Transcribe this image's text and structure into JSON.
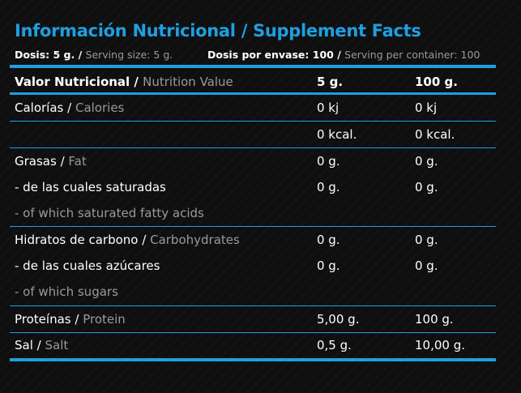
{
  "title": "Información Nutricional / Supplement Facts",
  "dosis": {
    "serving_es": "Dosis: 5 g. /",
    "serving_en": "Serving size: 5 g.",
    "container_es": "Dosis por envase: 100 /",
    "container_en": "Serving per container: 100"
  },
  "header": {
    "label_es": "Valor Nutricional /",
    "label_en": "Nutrition Value",
    "col1": "5 g.",
    "col2": "100 g."
  },
  "rows": [
    {
      "es": "Calorías /",
      "en": "Calories",
      "v1": "0 kj",
      "v2": "0 kj"
    },
    {
      "es": "",
      "en": "",
      "v1": "0 kcal.",
      "v2": "0 kcal."
    },
    {
      "es": "Grasas /",
      "en": "Fat",
      "v1": "0 g.",
      "v2": "0 g."
    },
    {
      "es": "- de las cuales saturadas",
      "en": "",
      "v1": "0 g.",
      "v2": "0 g."
    },
    {
      "es": "",
      "en": "- of which saturated fatty acids",
      "v1": "",
      "v2": ""
    },
    {
      "es": "Hidratos de carbono /",
      "en": "Carbohydrates",
      "v1": "0 g.",
      "v2": "0  g."
    },
    {
      "es": "- de las cuales azúcares",
      "en": "",
      "v1": "0 g.",
      "v2": "0 g."
    },
    {
      "es": "",
      "en": "- of which sugars",
      "v1": "",
      "v2": ""
    },
    {
      "es": "Proteínas /",
      "en": "Protein",
      "v1": "5,00 g.",
      "v2": "100 g."
    },
    {
      "es": "Sal /",
      "en": "Salt",
      "v1": "0,5 g.",
      "v2": "10,00 g."
    }
  ],
  "colors": {
    "accent": "#1f9fe0",
    "muted": "#9a9a9a",
    "background": "#0f0f10"
  }
}
